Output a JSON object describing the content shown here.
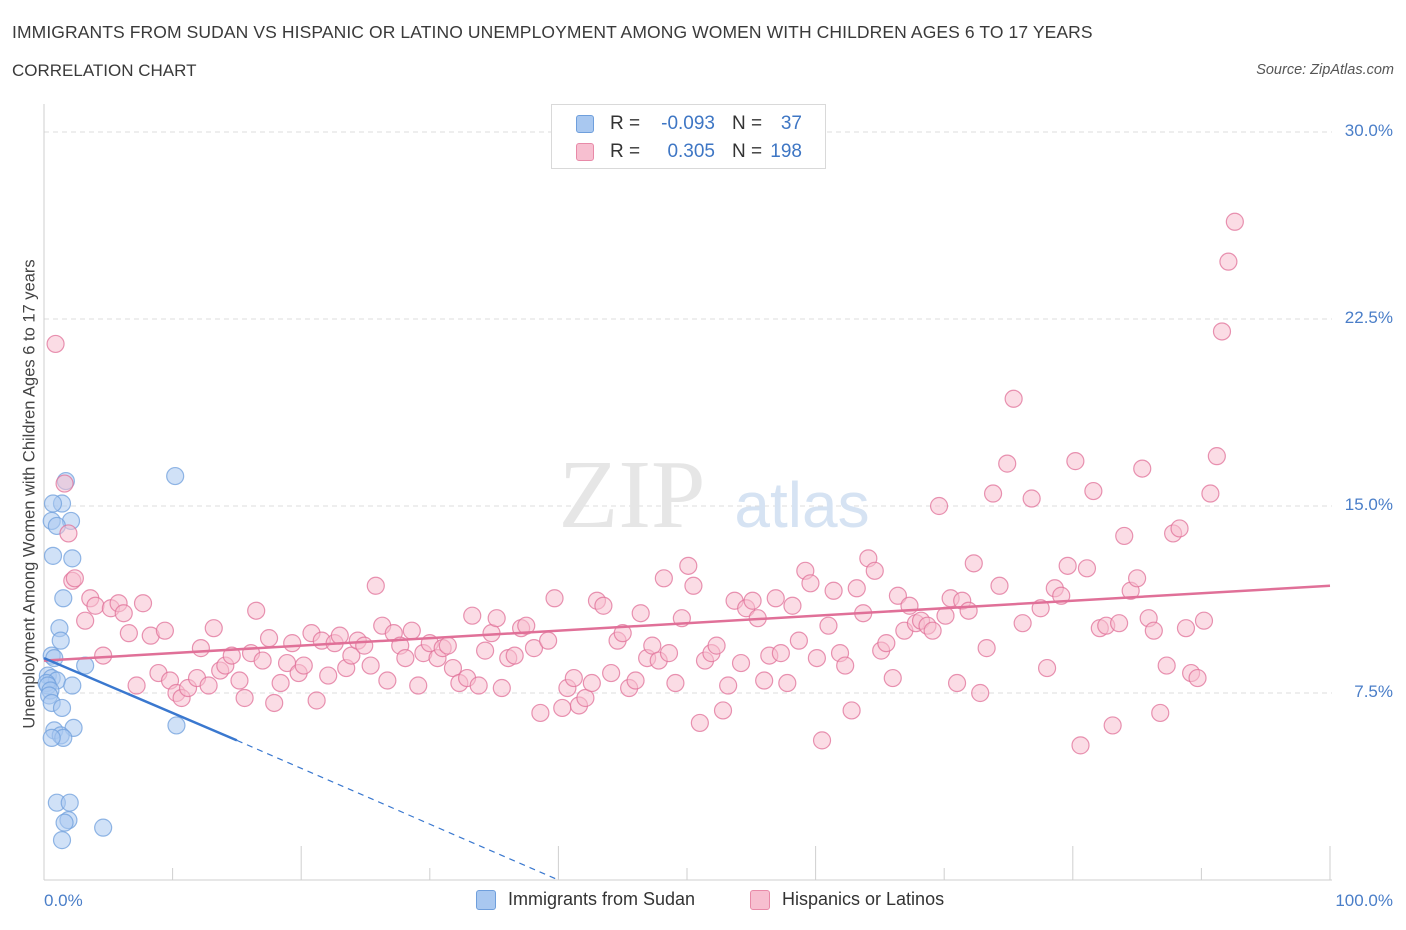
{
  "header": {
    "title": "IMMIGRANTS FROM SUDAN VS HISPANIC OR LATINO UNEMPLOYMENT AMONG WOMEN WITH CHILDREN AGES 6 TO 17 YEARS",
    "subtitle": "CORRELATION CHART",
    "source": "Source: ZipAtlas.com"
  },
  "watermark": {
    "zip": "ZIP",
    "atlas": "atlas"
  },
  "legend": {
    "rows": [
      {
        "r_label": "R =",
        "r_value": "-0.093",
        "n_label": "N =",
        "n_value": "37",
        "color": "#a9c8f0",
        "border": "#6f9fdc"
      },
      {
        "r_label": "R =",
        "r_value": "0.305",
        "n_label": "N =",
        "n_value": "198",
        "color": "#f7bfd0",
        "border": "#e88aa8"
      }
    ]
  },
  "bottom_legend": [
    {
      "label": "Immigrants from Sudan",
      "color": "#a9c8f0",
      "border": "#6f9fdc"
    },
    {
      "label": "Hispanics or Latinos",
      "color": "#f7bfd0",
      "border": "#e88aa8"
    }
  ],
  "chart_data": {
    "type": "scatter",
    "title": "IMMIGRANTS FROM SUDAN VS HISPANIC OR LATINO UNEMPLOYMENT AMONG WOMEN WITH CHILDREN AGES 6 TO 17 YEARS",
    "subtitle": "CORRELATION CHART",
    "ylabel": "Unemployment Among Women with Children Ages 6 to 17 years",
    "xlabel": "",
    "xlim": [
      0,
      100
    ],
    "ylim": [
      0,
      30
    ],
    "x_tick_labels": [
      "0.0%",
      "100.0%"
    ],
    "y_ticks": [
      {
        "value": 7.5,
        "label": "7.5%"
      },
      {
        "value": 15,
        "label": "15.0%"
      },
      {
        "value": 22.5,
        "label": "22.5%"
      },
      {
        "value": 30,
        "label": "30.0%"
      }
    ],
    "grid": "horizontal dashed",
    "legend_position": "top-center",
    "series": [
      {
        "name": "Immigrants from Sudan",
        "color": "#6f9fdc",
        "fill": "#a9c8f0",
        "trend": {
          "x": [
            0,
            15
          ],
          "y": [
            8.9,
            5.6
          ],
          "extension_to": [
            40,
            0
          ]
        },
        "points": [
          [
            1.7,
            16.0
          ],
          [
            1.4,
            15.1
          ],
          [
            0.7,
            15.1
          ],
          [
            0.6,
            14.4
          ],
          [
            2.1,
            14.4
          ],
          [
            1.0,
            14.2
          ],
          [
            2.2,
            12.9
          ],
          [
            0.7,
            13.0
          ],
          [
            1.5,
            11.3
          ],
          [
            1.2,
            10.1
          ],
          [
            1.3,
            9.6
          ],
          [
            0.6,
            9.0
          ],
          [
            0.8,
            8.9
          ],
          [
            3.2,
            8.6
          ],
          [
            0.3,
            8.2
          ],
          [
            0.6,
            8.1
          ],
          [
            1.0,
            8.0
          ],
          [
            0.2,
            7.9
          ],
          [
            0.3,
            7.8
          ],
          [
            2.2,
            7.8
          ],
          [
            0.5,
            7.6
          ],
          [
            0.4,
            7.4
          ],
          [
            0.6,
            7.1
          ],
          [
            1.4,
            6.9
          ],
          [
            2.3,
            6.1
          ],
          [
            0.8,
            6.0
          ],
          [
            1.3,
            5.8
          ],
          [
            1.5,
            5.7
          ],
          [
            0.6,
            5.7
          ],
          [
            1.0,
            3.1
          ],
          [
            2.0,
            3.1
          ],
          [
            1.9,
            2.4
          ],
          [
            1.6,
            2.3
          ],
          [
            4.6,
            2.1
          ],
          [
            1.4,
            1.6
          ],
          [
            10.2,
            16.2
          ],
          [
            10.3,
            6.2
          ]
        ]
      },
      {
        "name": "Hispanics or Latinos",
        "color": "#e07098",
        "fill": "#f7bfd0",
        "trend": {
          "x": [
            0,
            100
          ],
          "y": [
            8.8,
            11.8
          ]
        },
        "points": [
          [
            0.9,
            21.5
          ],
          [
            1.6,
            15.9
          ],
          [
            1.9,
            13.9
          ],
          [
            2.2,
            12.0
          ],
          [
            2.4,
            12.1
          ],
          [
            3.2,
            10.4
          ],
          [
            3.6,
            11.3
          ],
          [
            4.0,
            11.0
          ],
          [
            4.6,
            9.0
          ],
          [
            5.2,
            10.9
          ],
          [
            5.8,
            11.1
          ],
          [
            6.2,
            10.7
          ],
          [
            6.6,
            9.9
          ],
          [
            7.2,
            7.8
          ],
          [
            7.7,
            11.1
          ],
          [
            8.3,
            9.8
          ],
          [
            8.9,
            8.3
          ],
          [
            9.4,
            10.0
          ],
          [
            9.8,
            8.0
          ],
          [
            10.3,
            7.5
          ],
          [
            10.7,
            7.3
          ],
          [
            11.2,
            7.7
          ],
          [
            11.9,
            8.1
          ],
          [
            12.2,
            9.3
          ],
          [
            12.8,
            7.8
          ],
          [
            13.2,
            10.1
          ],
          [
            13.7,
            8.4
          ],
          [
            14.1,
            8.6
          ],
          [
            14.6,
            9.0
          ],
          [
            15.2,
            8.0
          ],
          [
            15.6,
            7.3
          ],
          [
            16.1,
            9.1
          ],
          [
            16.5,
            10.8
          ],
          [
            17.0,
            8.8
          ],
          [
            17.5,
            9.7
          ],
          [
            17.9,
            7.1
          ],
          [
            18.4,
            7.9
          ],
          [
            18.9,
            8.7
          ],
          [
            19.3,
            9.5
          ],
          [
            19.8,
            8.3
          ],
          [
            20.2,
            8.6
          ],
          [
            20.8,
            9.9
          ],
          [
            21.2,
            7.2
          ],
          [
            21.6,
            9.6
          ],
          [
            22.1,
            8.2
          ],
          [
            22.6,
            9.5
          ],
          [
            23.0,
            9.8
          ],
          [
            23.5,
            8.5
          ],
          [
            23.9,
            9.0
          ],
          [
            24.4,
            9.6
          ],
          [
            24.9,
            9.4
          ],
          [
            25.4,
            8.6
          ],
          [
            25.8,
            11.8
          ],
          [
            26.3,
            10.2
          ],
          [
            26.7,
            8.0
          ],
          [
            27.2,
            9.9
          ],
          [
            27.7,
            9.4
          ],
          [
            28.1,
            8.9
          ],
          [
            28.6,
            10.0
          ],
          [
            29.1,
            7.8
          ],
          [
            29.5,
            9.1
          ],
          [
            30.0,
            9.5
          ],
          [
            30.6,
            8.9
          ],
          [
            31.0,
            9.3
          ],
          [
            31.4,
            9.4
          ],
          [
            31.8,
            8.5
          ],
          [
            32.3,
            7.9
          ],
          [
            32.9,
            8.1
          ],
          [
            33.3,
            10.6
          ],
          [
            33.8,
            7.8
          ],
          [
            34.3,
            9.2
          ],
          [
            34.8,
            9.9
          ],
          [
            35.2,
            10.5
          ],
          [
            35.6,
            7.7
          ],
          [
            36.1,
            8.9
          ],
          [
            36.6,
            9.0
          ],
          [
            37.1,
            10.1
          ],
          [
            37.5,
            10.2
          ],
          [
            38.1,
            9.3
          ],
          [
            38.6,
            6.7
          ],
          [
            39.2,
            9.6
          ],
          [
            39.7,
            11.3
          ],
          [
            40.3,
            6.9
          ],
          [
            40.7,
            7.7
          ],
          [
            41.2,
            8.1
          ],
          [
            41.6,
            7.0
          ],
          [
            42.1,
            7.3
          ],
          [
            42.6,
            7.9
          ],
          [
            43.0,
            11.2
          ],
          [
            43.5,
            11.0
          ],
          [
            44.1,
            8.3
          ],
          [
            44.6,
            9.6
          ],
          [
            45.0,
            9.9
          ],
          [
            45.5,
            7.7
          ],
          [
            46.0,
            8.0
          ],
          [
            46.4,
            10.7
          ],
          [
            46.9,
            8.9
          ],
          [
            47.3,
            9.4
          ],
          [
            47.8,
            8.8
          ],
          [
            48.2,
            12.1
          ],
          [
            48.6,
            9.1
          ],
          [
            49.1,
            7.9
          ],
          [
            49.6,
            10.5
          ],
          [
            50.1,
            12.6
          ],
          [
            50.5,
            11.8
          ],
          [
            51.0,
            6.3
          ],
          [
            51.4,
            8.8
          ],
          [
            51.9,
            9.1
          ],
          [
            52.3,
            9.4
          ],
          [
            52.8,
            6.8
          ],
          [
            53.2,
            7.8
          ],
          [
            53.7,
            11.2
          ],
          [
            54.2,
            8.7
          ],
          [
            54.6,
            10.9
          ],
          [
            55.1,
            11.2
          ],
          [
            55.5,
            10.5
          ],
          [
            56.0,
            8.0
          ],
          [
            56.4,
            9.0
          ],
          [
            56.9,
            11.3
          ],
          [
            57.3,
            9.1
          ],
          [
            57.8,
            7.9
          ],
          [
            58.2,
            11.0
          ],
          [
            58.7,
            9.6
          ],
          [
            59.2,
            12.4
          ],
          [
            59.6,
            11.9
          ],
          [
            60.1,
            8.9
          ],
          [
            60.5,
            5.6
          ],
          [
            61.0,
            10.2
          ],
          [
            61.4,
            11.6
          ],
          [
            61.9,
            9.1
          ],
          [
            62.3,
            8.6
          ],
          [
            62.8,
            6.8
          ],
          [
            63.2,
            11.7
          ],
          [
            63.7,
            10.7
          ],
          [
            64.1,
            12.9
          ],
          [
            64.6,
            12.4
          ],
          [
            65.1,
            9.2
          ],
          [
            65.5,
            9.5
          ],
          [
            66.0,
            8.1
          ],
          [
            66.4,
            11.4
          ],
          [
            66.9,
            10.0
          ],
          [
            67.3,
            11.0
          ],
          [
            67.8,
            10.3
          ],
          [
            68.2,
            10.4
          ],
          [
            68.7,
            10.2
          ],
          [
            69.1,
            10.0
          ],
          [
            69.6,
            15.0
          ],
          [
            70.1,
            10.6
          ],
          [
            70.5,
            11.3
          ],
          [
            71.0,
            7.9
          ],
          [
            71.4,
            11.2
          ],
          [
            71.9,
            10.8
          ],
          [
            72.3,
            12.7
          ],
          [
            72.8,
            7.5
          ],
          [
            73.3,
            9.3
          ],
          [
            73.8,
            15.5
          ],
          [
            74.3,
            11.8
          ],
          [
            74.9,
            16.7
          ],
          [
            75.4,
            19.3
          ],
          [
            76.1,
            10.3
          ],
          [
            76.8,
            15.3
          ],
          [
            77.5,
            10.9
          ],
          [
            78.0,
            8.5
          ],
          [
            78.6,
            11.7
          ],
          [
            79.1,
            11.4
          ],
          [
            79.6,
            12.6
          ],
          [
            80.2,
            16.8
          ],
          [
            80.6,
            5.4
          ],
          [
            81.1,
            12.5
          ],
          [
            81.6,
            15.6
          ],
          [
            82.1,
            10.1
          ],
          [
            82.6,
            10.2
          ],
          [
            83.1,
            6.2
          ],
          [
            83.6,
            10.3
          ],
          [
            84.0,
            13.8
          ],
          [
            84.5,
            11.6
          ],
          [
            85.0,
            12.1
          ],
          [
            85.4,
            16.5
          ],
          [
            85.9,
            10.5
          ],
          [
            86.3,
            10.0
          ],
          [
            86.8,
            6.7
          ],
          [
            87.3,
            8.6
          ],
          [
            87.8,
            13.9
          ],
          [
            88.3,
            14.1
          ],
          [
            88.8,
            10.1
          ],
          [
            89.2,
            8.3
          ],
          [
            89.7,
            8.1
          ],
          [
            90.2,
            10.4
          ],
          [
            90.7,
            15.5
          ],
          [
            91.2,
            17.0
          ],
          [
            91.6,
            22.0
          ],
          [
            92.1,
            24.8
          ],
          [
            92.6,
            26.4
          ]
        ]
      }
    ]
  }
}
